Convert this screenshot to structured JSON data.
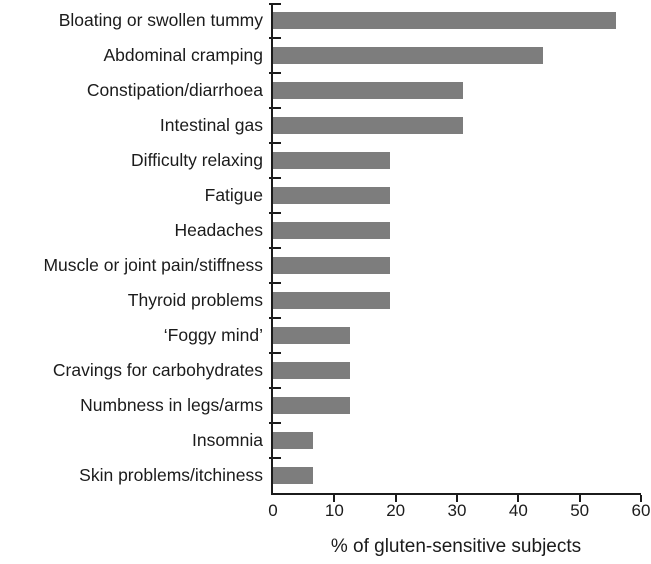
{
  "chart_data": {
    "type": "bar",
    "orientation": "horizontal",
    "title": "",
    "xlabel": "% of gluten-sensitive subjects",
    "ylabel": "",
    "categories": [
      "Bloating or swollen tummy",
      "Abdominal cramping",
      "Constipation/diarrhoea",
      "Intestinal gas",
      "Difficulty relaxing",
      "Fatigue",
      "Headaches",
      "Muscle or joint pain/stiffness",
      "Thyroid problems",
      "‘Foggy mind’",
      "Cravings for carbohydrates",
      "Numbness in legs/arms",
      "Insomnia",
      "Skin problems/itchiness"
    ],
    "values": [
      56,
      44,
      31,
      31,
      19,
      19,
      19,
      19,
      19,
      12.5,
      12.5,
      12.5,
      6.5,
      6.5
    ],
    "xlim": [
      0,
      60
    ],
    "x_ticks": [
      0,
      10,
      20,
      30,
      40,
      50,
      60
    ],
    "grid": false,
    "legend": false,
    "bar_color": "#7d7d7d",
    "axis_color": "#1b1b1b"
  }
}
